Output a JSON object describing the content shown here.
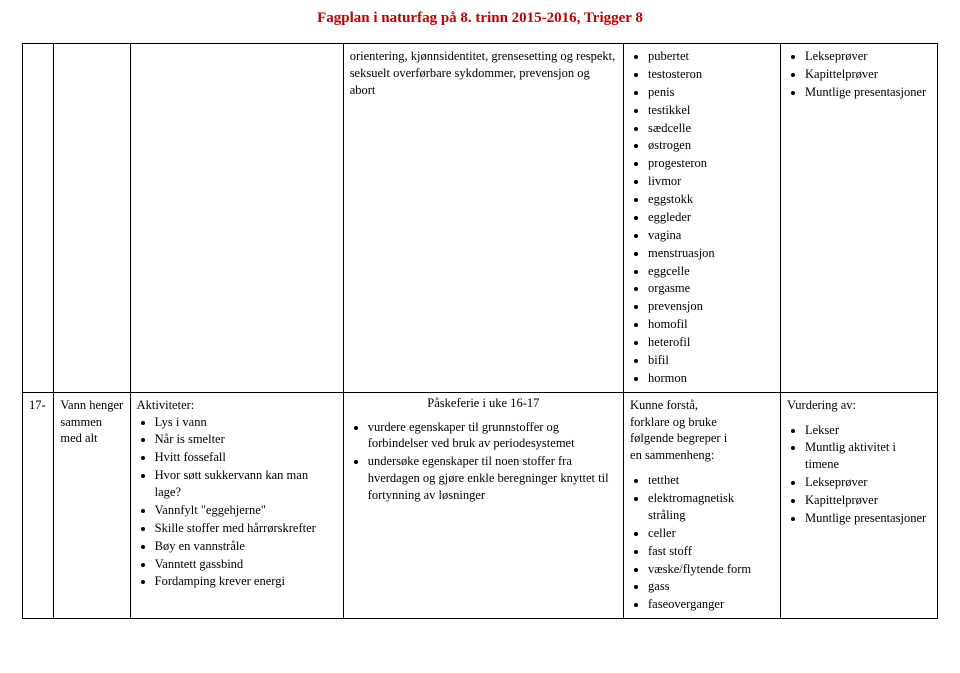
{
  "title": "Fagplan i naturfag på 8. trinn 2015-2016, Trigger 8",
  "row1": {
    "goal_text": "orientering, kjønnsidentitet, grensesetting og respekt, seksuelt overførbare sykdommer, prevensjon og abort",
    "terms": [
      "pubertet",
      "testosteron",
      "penis",
      "testikkel",
      "sædcelle",
      "østrogen",
      "progesteron",
      "livmor",
      "eggstokk",
      "eggleder",
      "vagina",
      "menstruasjon",
      "eggcelle",
      "orgasme",
      "prevensjon",
      "homofil",
      "heterofil",
      "bifil",
      "hormon"
    ],
    "assess": [
      "Lekseprøver",
      "Kapittelprøver",
      "Muntlige presentasjoner"
    ]
  },
  "holiday": "Påskeferie i uke 16-17",
  "row2": {
    "week": "17-",
    "topic": "Vann henger sammen med alt",
    "activities_label": "Aktiviteter:",
    "activities": [
      "Lys i vann",
      "Når is smelter",
      "Hvitt fossefall",
      "Hvor søtt sukkervann kan man lage?",
      "Vannfylt \"eggehjerne\"",
      "Skille stoffer med hårrørskrefter",
      "Bøy en vannstråle",
      "Vanntett gassbind",
      "Fordamping krever energi"
    ],
    "goals": [
      "vurdere egenskaper til grunnstoffer og forbindelser ved bruk av periodesystemet",
      "undersøke egenskaper til noen stoffer fra hverdagen og gjøre enkle beregninger knyttet til fortynning av løsninger"
    ],
    "terms_intro1": "Kunne forstå,",
    "terms_intro2": "forklare og bruke",
    "terms_intro3": "følgende begreper i",
    "terms_intro4": "en sammenheng:",
    "terms": [
      "tetthet",
      "elektromagnetisk stråling",
      "celler",
      "fast stoff",
      "væske/flytende form",
      "gass",
      "faseoverganger"
    ],
    "assess_label": "Vurdering av:",
    "assess": [
      "Lekser",
      "Muntlig aktivitet i timene",
      "Lekseprøver",
      "Kapittelprøver",
      "Muntlige presentasjoner"
    ]
  }
}
